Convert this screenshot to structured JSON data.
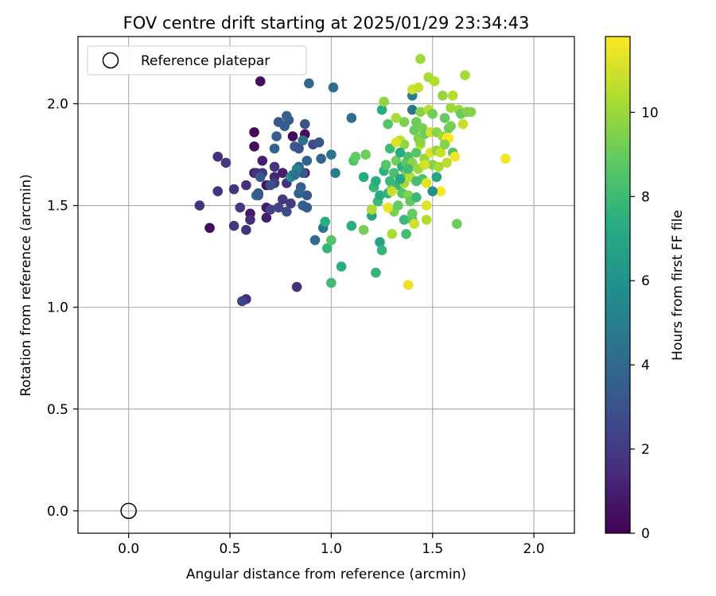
{
  "chart_data": {
    "type": "scatter",
    "title": "FOV centre drift starting at 2025/01/29 23:34:43",
    "xlabel": "Angular distance from reference (arcmin)",
    "ylabel": "Rotation from reference (arcmin)",
    "xlim": [
      -0.25,
      2.2
    ],
    "ylim": [
      -0.11,
      2.33
    ],
    "xticks": [
      "0.0",
      "0.5",
      "1.0",
      "1.5",
      "2.0"
    ],
    "yticks": [
      "0.0",
      "0.5",
      "1.0",
      "1.5",
      "2.0"
    ],
    "grid": true,
    "legend": {
      "position": "top-left",
      "entries": [
        "Reference platepar"
      ]
    },
    "reference_point": {
      "x": 0.0,
      "y": 0.0
    },
    "colorbar": {
      "label": "Hours from first FF file",
      "range": [
        0,
        11.8
      ],
      "ticks": [
        "0",
        "2",
        "4",
        "6",
        "8",
        "10"
      ],
      "colormap": "viridis"
    },
    "points": [
      [
        0.65,
        2.11,
        0.4
      ],
      [
        0.4,
        1.39,
        0.3
      ],
      [
        0.62,
        1.86,
        0.3
      ],
      [
        0.62,
        1.79,
        0.3
      ],
      [
        0.81,
        1.84,
        0.3
      ],
      [
        0.87,
        1.85,
        0.4
      ],
      [
        0.68,
        1.6,
        0.6
      ],
      [
        0.62,
        1.66,
        0.7
      ],
      [
        0.6,
        1.46,
        0.8
      ],
      [
        0.68,
        1.44,
        0.9
      ],
      [
        0.68,
        1.49,
        0.8
      ],
      [
        0.76,
        1.66,
        1.0
      ],
      [
        0.87,
        1.66,
        0.9
      ],
      [
        0.72,
        1.64,
        1.2
      ],
      [
        0.66,
        1.72,
        1.0
      ],
      [
        0.35,
        1.5,
        1.8
      ],
      [
        0.44,
        1.74,
        1.6
      ],
      [
        0.48,
        1.71,
        1.9
      ],
      [
        0.44,
        1.57,
        1.7
      ],
      [
        0.52,
        1.58,
        1.8
      ],
      [
        0.55,
        1.49,
        2.0
      ],
      [
        0.52,
        1.4,
        1.8
      ],
      [
        0.58,
        1.38,
        1.7
      ],
      [
        0.6,
        1.43,
        1.5
      ],
      [
        0.58,
        1.6,
        1.6
      ],
      [
        0.58,
        1.04,
        1.6
      ],
      [
        0.56,
        1.03,
        2.4
      ],
      [
        0.83,
        1.1,
        1.5
      ],
      [
        0.63,
        1.66,
        1.7
      ],
      [
        0.66,
        1.66,
        2.0
      ],
      [
        0.72,
        1.69,
        1.8
      ],
      [
        0.72,
        1.61,
        2.0
      ],
      [
        0.76,
        1.53,
        1.9
      ],
      [
        0.78,
        1.61,
        1.6
      ],
      [
        0.8,
        1.51,
        2.1
      ],
      [
        0.7,
        1.48,
        2.3
      ],
      [
        0.74,
        1.49,
        2.5
      ],
      [
        0.64,
        1.55,
        2.9
      ],
      [
        0.7,
        1.6,
        2.9
      ],
      [
        0.72,
        1.78,
        3.8
      ],
      [
        0.78,
        1.47,
        2.6
      ],
      [
        0.74,
        1.91,
        3.2
      ],
      [
        0.77,
        1.89,
        3.5
      ],
      [
        0.79,
        1.92,
        3.3
      ],
      [
        0.78,
        1.94,
        3.6
      ],
      [
        0.82,
        1.79,
        3.4
      ],
      [
        0.84,
        1.78,
        3.1
      ],
      [
        0.84,
        1.69,
        3.7
      ],
      [
        0.86,
        1.66,
        3.3
      ],
      [
        0.85,
        1.59,
        3.5
      ],
      [
        0.84,
        1.56,
        3.9
      ],
      [
        0.86,
        1.5,
        3.5
      ],
      [
        0.88,
        1.49,
        3.4
      ],
      [
        0.88,
        1.55,
        3.2
      ],
      [
        0.87,
        1.9,
        3.0
      ],
      [
        0.86,
        1.82,
        4.2
      ],
      [
        0.88,
        1.72,
        3.6
      ],
      [
        0.91,
        1.8,
        2.8
      ],
      [
        0.94,
        1.81,
        3.0
      ],
      [
        0.95,
        1.73,
        3.8
      ],
      [
        0.89,
        2.1,
        3.9
      ],
      [
        0.92,
        1.33,
        4.1
      ],
      [
        0.96,
        1.39,
        4.5
      ],
      [
        1.0,
        1.75,
        4.6
      ],
      [
        1.02,
        1.66,
        5.0
      ],
      [
        1.01,
        2.08,
        4.2
      ],
      [
        1.1,
        1.93,
        4.3
      ],
      [
        0.73,
        1.84,
        3.4
      ],
      [
        0.81,
        1.65,
        4.6
      ],
      [
        0.83,
        1.68,
        5.2
      ],
      [
        0.63,
        1.55,
        4.1
      ],
      [
        0.65,
        1.64,
        3.2
      ],
      [
        0.8,
        1.64,
        5.6
      ],
      [
        0.64,
        1.56,
        3.3
      ],
      [
        0.82,
        1.65,
        4.4
      ],
      [
        0.97,
        1.42,
        7.4
      ],
      [
        0.98,
        1.29,
        7.7
      ],
      [
        1.0,
        1.33,
        8.6
      ],
      [
        1.0,
        1.12,
        8.0
      ],
      [
        1.05,
        1.2,
        7.4
      ],
      [
        1.1,
        1.4,
        7.4
      ],
      [
        1.11,
        1.72,
        8.5
      ],
      [
        1.12,
        1.74,
        8.9
      ],
      [
        1.16,
        1.38,
        9.3
      ],
      [
        1.16,
        1.64,
        7.2
      ],
      [
        1.17,
        1.75,
        9.1
      ],
      [
        1.2,
        1.48,
        7.5
      ],
      [
        1.2,
        1.45,
        6.8
      ],
      [
        1.21,
        1.59,
        7.8
      ],
      [
        1.22,
        1.62,
        7.3
      ],
      [
        1.22,
        1.17,
        7.7
      ],
      [
        1.23,
        1.52,
        8.0
      ],
      [
        1.24,
        1.55,
        7.1
      ],
      [
        1.24,
        1.32,
        6.7
      ],
      [
        1.25,
        1.28,
        7.7
      ],
      [
        1.25,
        1.97,
        7.3
      ],
      [
        1.26,
        2.01,
        9.8
      ],
      [
        1.26,
        1.67,
        7.5
      ],
      [
        1.27,
        1.7,
        8.6
      ],
      [
        1.28,
        1.9,
        8.5
      ],
      [
        1.28,
        1.56,
        7.6
      ],
      [
        1.29,
        1.78,
        8.0
      ],
      [
        1.29,
        1.62,
        7.9
      ],
      [
        1.3,
        1.58,
        8.4
      ],
      [
        1.3,
        1.36,
        10.3
      ],
      [
        1.31,
        1.47,
        9.4
      ],
      [
        1.31,
        1.66,
        8.3
      ],
      [
        1.32,
        1.72,
        9.2
      ],
      [
        1.32,
        1.93,
        10.2
      ],
      [
        1.33,
        1.6,
        7.8
      ],
      [
        1.33,
        1.5,
        8.9
      ],
      [
        1.34,
        1.82,
        10.6
      ],
      [
        1.35,
        1.69,
        7.5
      ],
      [
        1.35,
        1.56,
        8.6
      ],
      [
        1.36,
        1.43,
        7.9
      ],
      [
        1.36,
        1.8,
        9.8
      ],
      [
        1.36,
        1.61,
        10.1
      ],
      [
        1.37,
        1.71,
        8.8
      ],
      [
        1.37,
        1.66,
        9.2
      ],
      [
        1.37,
        1.36,
        8.2
      ],
      [
        1.38,
        1.74,
        8.4
      ],
      [
        1.38,
        1.55,
        9.5
      ],
      [
        1.38,
        1.11,
        11.4
      ],
      [
        1.39,
        1.52,
        8.9
      ],
      [
        1.39,
        1.64,
        10.5
      ],
      [
        1.4,
        1.43,
        8.5
      ],
      [
        1.4,
        1.71,
        9.7
      ],
      [
        1.4,
        1.97,
        4.5
      ],
      [
        1.4,
        2.04,
        4.9
      ],
      [
        1.4,
        2.07,
        11.0
      ],
      [
        1.41,
        1.87,
        9.0
      ],
      [
        1.41,
        1.41,
        10.9
      ],
      [
        1.42,
        1.76,
        8.7
      ],
      [
        1.42,
        1.91,
        9.1
      ],
      [
        1.42,
        1.54,
        7.9
      ],
      [
        1.43,
        1.68,
        10.0
      ],
      [
        1.43,
        1.83,
        9.5
      ],
      [
        1.43,
        2.08,
        10.7
      ],
      [
        1.44,
        1.96,
        9.6
      ],
      [
        1.44,
        2.22,
        10.1
      ],
      [
        1.44,
        1.8,
        10.7
      ],
      [
        1.45,
        1.63,
        8.4
      ],
      [
        1.45,
        1.88,
        9.3
      ],
      [
        1.46,
        1.85,
        9.1
      ],
      [
        1.46,
        1.73,
        9.9
      ],
      [
        1.47,
        1.61,
        11.3
      ],
      [
        1.47,
        1.43,
        10.4
      ],
      [
        1.47,
        1.5,
        11.2
      ],
      [
        1.48,
        1.97,
        10.5
      ],
      [
        1.48,
        2.13,
        10.2
      ],
      [
        1.49,
        1.76,
        11.2
      ],
      [
        1.49,
        1.86,
        11.0
      ],
      [
        1.5,
        1.7,
        9.6
      ],
      [
        1.5,
        1.95,
        9.2
      ],
      [
        1.51,
        2.11,
        10.4
      ],
      [
        1.52,
        1.86,
        9.6
      ],
      [
        1.52,
        1.77,
        9.8
      ],
      [
        1.53,
        1.69,
        10.2
      ],
      [
        1.54,
        1.57,
        11.7
      ],
      [
        1.54,
        1.76,
        10.8
      ],
      [
        1.55,
        1.84,
        10.0
      ],
      [
        1.55,
        2.04,
        9.9
      ],
      [
        1.56,
        1.93,
        8.9
      ],
      [
        1.57,
        1.83,
        11.7
      ],
      [
        1.57,
        1.71,
        10.5
      ],
      [
        1.58,
        1.88,
        9.1
      ],
      [
        1.59,
        1.98,
        10.0
      ],
      [
        1.59,
        1.89,
        9.3
      ],
      [
        1.6,
        2.04,
        10.5
      ],
      [
        1.6,
        1.76,
        8.6
      ],
      [
        1.61,
        1.74,
        11.6
      ],
      [
        1.62,
        1.41,
        9.1
      ],
      [
        1.63,
        1.97,
        10.0
      ],
      [
        1.64,
        1.95,
        9.0
      ],
      [
        1.65,
        1.9,
        10.8
      ],
      [
        1.66,
        2.14,
        10.2
      ],
      [
        1.67,
        1.96,
        9.5
      ],
      [
        1.69,
        1.96,
        9.6
      ],
      [
        1.86,
        1.73,
        11.6
      ],
      [
        1.58,
        1.83,
        11.9
      ],
      [
        1.28,
        1.49,
        11.4
      ],
      [
        1.3,
        1.57,
        10.8
      ],
      [
        1.32,
        1.81,
        11.2
      ],
      [
        1.2,
        1.48,
        10.3
      ],
      [
        1.34,
        1.76,
        7.3
      ],
      [
        1.36,
        1.91,
        9.4
      ],
      [
        1.38,
        1.68,
        8.1
      ],
      [
        1.4,
        1.46,
        9.0
      ],
      [
        1.44,
        1.81,
        9.7
      ],
      [
        1.46,
        1.7,
        11.0
      ],
      [
        1.42,
        1.62,
        8.2
      ],
      [
        1.5,
        1.57,
        5.8
      ],
      [
        1.52,
        1.64,
        6.9
      ],
      [
        1.56,
        1.8,
        9.5
      ],
      [
        1.34,
        1.63,
        7.0
      ]
    ]
  }
}
